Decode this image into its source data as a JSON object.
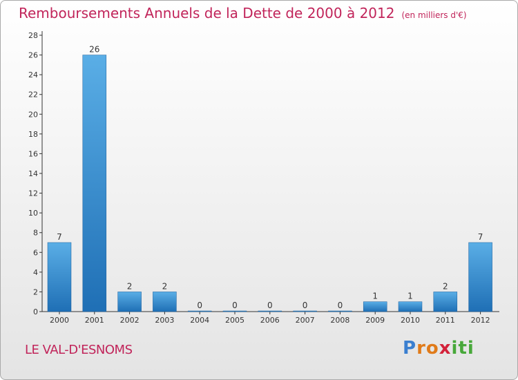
{
  "title": "Remboursements Annuels de la Dette de 2000 à 2012",
  "title_unit": "(en milliers d'€)",
  "commune": "LE VAL-D'ESNOMS",
  "logo": {
    "text": "Proxiti",
    "parts": [
      "P",
      "ro",
      "x",
      "iti"
    ]
  },
  "colors": {
    "title": "#c1245a",
    "bar_light": "#5aaee6",
    "bar_dark": "#1f6fb5",
    "axis": "#333333"
  },
  "chart_data": {
    "type": "bar",
    "title": "Remboursements Annuels de la Dette de 2000 à 2012",
    "xlabel": "",
    "ylabel": "en milliers d'€",
    "categories": [
      "2000",
      "2001",
      "2002",
      "2003",
      "2004",
      "2005",
      "2006",
      "2007",
      "2008",
      "2009",
      "2010",
      "2011",
      "2012"
    ],
    "values": [
      7,
      26,
      2,
      2,
      0,
      0,
      0,
      0,
      0,
      1,
      1,
      2,
      7
    ],
    "ylim": [
      0,
      28
    ],
    "yticks": [
      0,
      2,
      4,
      6,
      8,
      10,
      12,
      14,
      16,
      18,
      20,
      22,
      24,
      26,
      28
    ],
    "grid": false,
    "data_labels": true
  }
}
